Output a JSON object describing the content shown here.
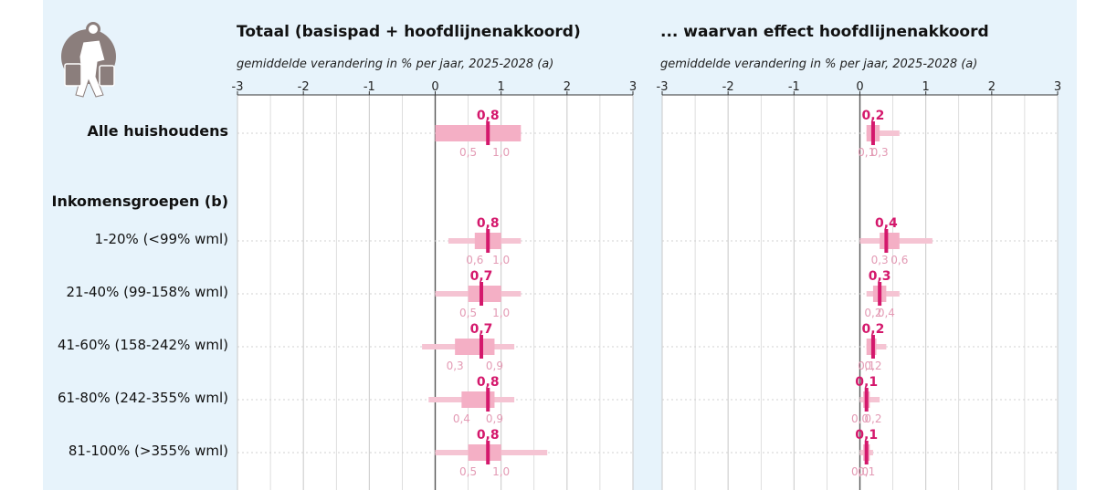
{
  "colors": {
    "background": "#e7f3fb",
    "plot_bg": "#ffffff",
    "band_wide": "#f5c4d3",
    "band_inner": "#f4afc5",
    "median": "#d4186c",
    "quantile_text": "#e39ab4",
    "grid": "#c8c8c8",
    "zero_line": "#555555"
  },
  "icon": "traveler-with-luggage-icon",
  "groups_header": "Inkomensgroepen (b)",
  "chart_data": [
    {
      "type": "box",
      "title": "Totaal (basispad + hoofdlijnenakkoord)",
      "subtitle": "gemiddelde verandering in % per jaar, 2025-2028 (a)",
      "xlim": [
        -3,
        3
      ],
      "xticks": [
        "-3",
        "-2",
        "-1",
        "0",
        "1",
        "2",
        "3"
      ],
      "grid": true,
      "rows": [
        {
          "label": "Alle huishoudens",
          "median": 0.8,
          "median_label": "0,8",
          "q_low": 0.5,
          "q_high": 1.0,
          "q_low_label": "0,5",
          "q_high_label": "1,0",
          "p_low": 0.0,
          "p_high": 1.3,
          "w_low": 0.0,
          "w_high": 1.3
        },
        {
          "label": "1-20% (<99% wml)",
          "median": 0.8,
          "median_label": "0,8",
          "q_low": 0.6,
          "q_high": 1.0,
          "q_low_label": "0,6",
          "q_high_label": "1,0",
          "p_low": 0.6,
          "p_high": 1.0,
          "w_low": 0.2,
          "w_high": 1.3
        },
        {
          "label": "21-40% (99-158% wml)",
          "median": 0.7,
          "median_label": "0,7",
          "q_low": 0.5,
          "q_high": 1.0,
          "q_low_label": "0,5",
          "q_high_label": "1,0",
          "p_low": 0.5,
          "p_high": 1.0,
          "w_low": 0.0,
          "w_high": 1.3
        },
        {
          "label": "41-60% (158-242% wml)",
          "median": 0.7,
          "median_label": "0,7",
          "q_low": 0.3,
          "q_high": 0.9,
          "q_low_label": "0,3",
          "q_high_label": "0,9",
          "p_low": 0.3,
          "p_high": 0.9,
          "w_low": -0.2,
          "w_high": 1.2
        },
        {
          "label": "61-80% (242-355% wml)",
          "median": 0.8,
          "median_label": "0,8",
          "q_low": 0.4,
          "q_high": 0.9,
          "q_low_label": "0,4",
          "q_high_label": "0,9",
          "p_low": 0.4,
          "p_high": 0.9,
          "w_low": -0.1,
          "w_high": 1.2
        },
        {
          "label": "81-100% (>355% wml)",
          "median": 0.8,
          "median_label": "0,8",
          "q_low": 0.5,
          "q_high": 1.0,
          "q_low_label": "0,5",
          "q_high_label": "1,0",
          "p_low": 0.5,
          "p_high": 1.0,
          "w_low": 0.0,
          "w_high": 1.7
        }
      ]
    },
    {
      "type": "box",
      "title": "... waarvan effect hoofdlijnenakkoord",
      "subtitle": "gemiddelde verandering in % per jaar, 2025-2028 (a)",
      "xlim": [
        -3,
        3
      ],
      "xticks": [
        "-3",
        "-2",
        "-1",
        "0",
        "1",
        "2",
        "3"
      ],
      "grid": true,
      "rows": [
        {
          "label": "Alle huishoudens",
          "median": 0.2,
          "median_label": "0,2",
          "q_low": 0.1,
          "q_high": 0.3,
          "q_low_label": "0,1",
          "q_high_label": "0,3",
          "p_low": 0.1,
          "p_high": 0.3,
          "w_low": 0.1,
          "w_high": 0.6
        },
        {
          "label": "1-20% (<99% wml)",
          "median": 0.4,
          "median_label": "0,4",
          "q_low": 0.3,
          "q_high": 0.6,
          "q_low_label": "0,3",
          "q_high_label": "0,6",
          "p_low": 0.3,
          "p_high": 0.6,
          "w_low": 0.0,
          "w_high": 1.1
        },
        {
          "label": "21-40% (99-158% wml)",
          "median": 0.3,
          "median_label": "0,3",
          "q_low": 0.2,
          "q_high": 0.4,
          "q_low_label": "0,2",
          "q_high_label": "0,4",
          "p_low": 0.2,
          "p_high": 0.4,
          "w_low": 0.1,
          "w_high": 0.6
        },
        {
          "label": "41-60% (158-242% wml)",
          "median": 0.2,
          "median_label": "0,2",
          "q_low": 0.1,
          "q_high": 0.2,
          "q_low_label": "0,1",
          "q_high_label": "0,2",
          "p_low": 0.1,
          "p_high": 0.25,
          "w_low": 0.1,
          "w_high": 0.4
        },
        {
          "label": "61-80% (242-355% wml)",
          "median": 0.1,
          "median_label": "0,1",
          "q_low": 0.0,
          "q_high": 0.2,
          "q_low_label": "0,0",
          "q_high_label": "0,2",
          "p_low": 0.05,
          "p_high": 0.15,
          "w_low": 0.0,
          "w_high": 0.3
        },
        {
          "label": "81-100% (>355% wml)",
          "median": 0.1,
          "median_label": "0,1",
          "q_low": 0.0,
          "q_high": 0.1,
          "q_low_label": "0,0",
          "q_high_label": "0,1",
          "p_low": 0.05,
          "p_high": 0.15,
          "w_low": 0.0,
          "w_high": 0.2
        }
      ]
    }
  ]
}
